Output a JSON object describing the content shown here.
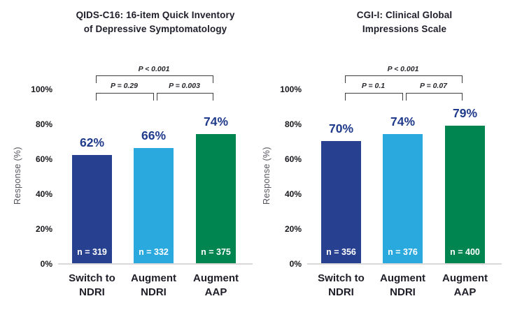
{
  "colors": {
    "bar_dark_blue": "#27408f",
    "bar_light_blue": "#2aa9de",
    "bar_green": "#008551",
    "value_label_navy": "#203a8c",
    "baseline_gray": "#d9d9d9",
    "n_label_white": "#ffffff"
  },
  "chart_data": [
    {
      "type": "bar",
      "title": "QIDS-C16: 16-item Quick Inventory\nof Depressive Symptomatology",
      "ylabel": "Response (%)",
      "ylim": [
        0,
        100
      ],
      "yticks": [
        "0%",
        "20%",
        "40%",
        "60%",
        "80%",
        "100%"
      ],
      "grid": false,
      "legend": false,
      "categories": [
        "Switch to\nNDRI",
        "Augment\nNDRI",
        "Augment\nAAP"
      ],
      "values": [
        62,
        66,
        74
      ],
      "value_labels": [
        "62%",
        "66%",
        "74%"
      ],
      "sample_sizes": [
        319,
        332,
        375
      ],
      "n_labels": [
        "n = 319",
        "n = 332",
        "n = 375"
      ],
      "bar_colors": [
        "#27408f",
        "#2aa9de",
        "#008551"
      ],
      "significance": [
        {
          "label": "P < 0.001",
          "between": [
            "Switch to NDRI",
            "Augment AAP"
          ]
        },
        {
          "label": "P = 0.29",
          "between": [
            "Switch to NDRI",
            "Augment NDRI"
          ]
        },
        {
          "label": "P = 0.003",
          "between": [
            "Augment NDRI",
            "Augment AAP"
          ]
        }
      ]
    },
    {
      "type": "bar",
      "title": "CGI-I: Clinical Global\nImpressions Scale",
      "ylabel": "Response (%)",
      "ylim": [
        0,
        100
      ],
      "yticks": [
        "0%",
        "20%",
        "40%",
        "60%",
        "80%",
        "100%"
      ],
      "grid": false,
      "legend": false,
      "categories": [
        "Switch to\nNDRI",
        "Augment\nNDRI",
        "Augment\nAAP"
      ],
      "values": [
        70,
        74,
        79
      ],
      "value_labels": [
        "70%",
        "74%",
        "79%"
      ],
      "sample_sizes": [
        356,
        376,
        400
      ],
      "n_labels": [
        "n = 356",
        "n = 376",
        "n = 400"
      ],
      "bar_colors": [
        "#27408f",
        "#2aa9de",
        "#008551"
      ],
      "significance": [
        {
          "label": "P < 0.001",
          "between": [
            "Switch to NDRI",
            "Augment AAP"
          ]
        },
        {
          "label": "P = 0.1",
          "between": [
            "Switch to NDRI",
            "Augment NDRI"
          ]
        },
        {
          "label": "P = 0.07",
          "between": [
            "Augment NDRI",
            "Augment AAP"
          ]
        }
      ]
    }
  ]
}
